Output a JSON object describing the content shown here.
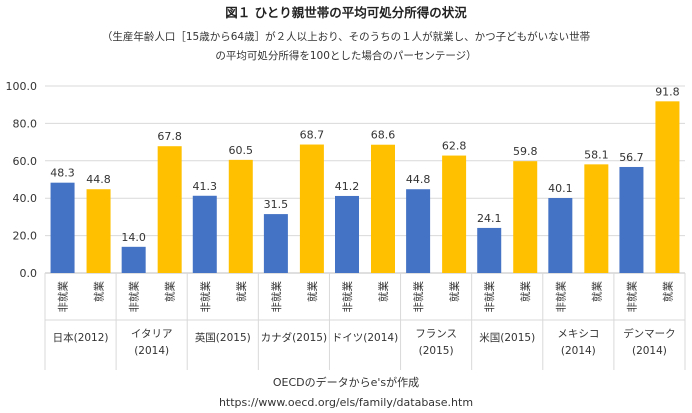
{
  "title": "図１ ひとり親世帯の平均可処分所得の状況",
  "subtitle_line1": "（生産年齢人口［15歳から64歳］が２人以上おり、そのうちの１人が就業し、かつ子どもがいない世帯",
  "subtitle_line2": "の平均可処分所得を100とした場合のパーセンテージ）",
  "footer_line1": "OECDのデータからe'sが作成",
  "footer_line2": "https://www.oecd.org/els/family/database.htm",
  "chart_data": {
    "type": "bar",
    "title": "図１ ひとり親世帯の平均可処分所得の状況",
    "ylim": [
      0,
      100
    ],
    "y_ticks": [
      "0.0",
      "20.0",
      "40.0",
      "60.0",
      "80.0",
      "100.0"
    ],
    "grid": true,
    "series_colors": [
      "#4472C4",
      "#FFC000"
    ],
    "groups": [
      {
        "label": [
          "日本(2012)"
        ],
        "categories": [
          "非就業",
          "就業"
        ],
        "values": [
          48.3,
          44.8
        ]
      },
      {
        "label": [
          "イタリア",
          "(2014)"
        ],
        "categories": [
          "非就業",
          "就業"
        ],
        "values": [
          14.0,
          67.8
        ]
      },
      {
        "label": [
          "英国(2015)"
        ],
        "categories": [
          "非就業",
          "就業"
        ],
        "values": [
          41.3,
          60.5
        ]
      },
      {
        "label": [
          "カナダ(2015)"
        ],
        "categories": [
          "非就業",
          "就業"
        ],
        "values": [
          31.5,
          68.7
        ]
      },
      {
        "label": [
          "ドイツ(2014)"
        ],
        "categories": [
          "非就業",
          "就業"
        ],
        "values": [
          41.2,
          68.6
        ]
      },
      {
        "label": [
          "フランス",
          "(2015)"
        ],
        "categories": [
          "非就業",
          "就業"
        ],
        "values": [
          44.8,
          62.8
        ]
      },
      {
        "label": [
          "米国(2015)"
        ],
        "categories": [
          "非就業",
          "就業"
        ],
        "values": [
          24.1,
          59.8
        ]
      },
      {
        "label": [
          "メキシコ",
          "(2014)"
        ],
        "categories": [
          "非就業",
          "就業"
        ],
        "values": [
          40.1,
          58.1
        ]
      },
      {
        "label": [
          "デンマーク",
          "(2014)"
        ],
        "categories": [
          "非就業",
          "就業"
        ],
        "values": [
          56.7,
          91.8
        ]
      }
    ]
  }
}
